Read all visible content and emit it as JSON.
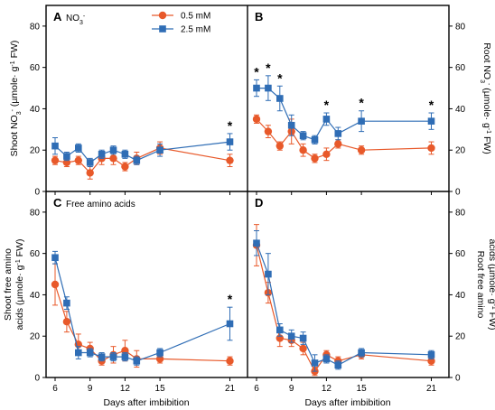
{
  "figure": {
    "x_axis_title": "Days after imbibition",
    "left_top_ylabel": [
      "Shoot NO",
      "3",
      "-",
      " (µmole· g",
      "-1",
      " FW)"
    ],
    "right_top_ylabel": [
      "Root NO",
      "3",
      "-",
      " (µmole· g",
      "-1",
      " FW)"
    ],
    "left_bottom_ylabel_line1": "Shoot free amino",
    "left_bottom_ylabel_line2": [
      "acids (µmole· g",
      "-1",
      " FW)"
    ],
    "right_bottom_ylabel_line1": "Root free amino",
    "right_bottom_ylabel_line2": [
      "acids (µmole· g",
      "-1",
      " FW)"
    ],
    "legend": [
      {
        "label": "0.5 mM",
        "color": "#e8592a",
        "marker": "circle"
      },
      {
        "label": "2.5 mM",
        "color": "#2f6db5",
        "marker": "square"
      }
    ]
  },
  "chart_data": [
    {
      "type": "line",
      "panel": "A",
      "label_parts": [
        "A",
        "NO",
        "3",
        "-"
      ],
      "x_ticks": [
        6,
        9,
        12,
        15,
        21
      ],
      "y_ticks": [
        0,
        20,
        40,
        60,
        80
      ],
      "xlim": [
        5,
        22
      ],
      "ylim": [
        0,
        90
      ],
      "series": [
        {
          "name": "0.5 mM",
          "color": "#e8592a",
          "marker": "circle",
          "x": [
            6,
            7,
            8,
            9,
            10,
            11,
            12,
            13,
            15,
            21
          ],
          "y": [
            15,
            14,
            15,
            9,
            16,
            16,
            12,
            16,
            21,
            15
          ],
          "err": [
            2,
            2,
            2,
            3,
            3,
            3,
            2,
            3,
            3,
            3
          ]
        },
        {
          "name": "2.5 mM",
          "color": "#2f6db5",
          "marker": "square",
          "x": [
            6,
            7,
            8,
            9,
            10,
            11,
            12,
            13,
            15,
            21
          ],
          "y": [
            22,
            17,
            21,
            14,
            18,
            20,
            18,
            15,
            20,
            24
          ],
          "err": [
            4,
            2,
            2,
            2,
            2,
            2,
            2,
            2,
            3,
            4
          ]
        }
      ],
      "annotations": [
        {
          "x": 21,
          "text": "*"
        }
      ]
    },
    {
      "type": "line",
      "panel": "B",
      "label_parts": [
        "B"
      ],
      "x_ticks": [
        6,
        9,
        12,
        15,
        21
      ],
      "y_ticks": [
        0,
        20,
        40,
        60,
        80
      ],
      "xlim": [
        5,
        22
      ],
      "ylim": [
        0,
        90
      ],
      "series": [
        {
          "name": "0.5 mM",
          "color": "#e8592a",
          "marker": "circle",
          "x": [
            6,
            7,
            8,
            9,
            10,
            11,
            12,
            13,
            15,
            21
          ],
          "y": [
            35,
            29,
            22,
            29,
            20,
            16,
            18,
            23,
            20,
            21
          ],
          "err": [
            2,
            3,
            2,
            6,
            3,
            2,
            3,
            2,
            2,
            3
          ]
        },
        {
          "name": "2.5 mM",
          "color": "#2f6db5",
          "marker": "square",
          "x": [
            6,
            7,
            8,
            9,
            10,
            11,
            12,
            13,
            15,
            21
          ],
          "y": [
            50,
            50,
            45,
            32,
            27,
            25,
            35,
            28,
            34,
            34
          ],
          "err": [
            4,
            6,
            6,
            5,
            2,
            2,
            3,
            3,
            5,
            4
          ]
        }
      ],
      "annotations": [
        {
          "x": 6,
          "text": "*"
        },
        {
          "x": 7,
          "text": "*"
        },
        {
          "x": 8,
          "text": "*"
        },
        {
          "x": 12,
          "text": "*"
        },
        {
          "x": 15,
          "text": "*"
        },
        {
          "x": 21,
          "text": "*"
        }
      ]
    },
    {
      "type": "line",
      "panel": "C",
      "label_parts": [
        "C",
        "Free amino acids"
      ],
      "x_ticks": [
        6,
        9,
        12,
        15,
        21
      ],
      "y_ticks": [
        0,
        20,
        40,
        60,
        80
      ],
      "xlim": [
        5,
        22
      ],
      "ylim": [
        0,
        90
      ],
      "series": [
        {
          "name": "0.5 mM",
          "color": "#e8592a",
          "marker": "circle",
          "x": [
            6,
            7,
            8,
            9,
            10,
            11,
            12,
            13,
            15,
            21
          ],
          "y": [
            45,
            27,
            16,
            14,
            8,
            11,
            13,
            9,
            9,
            8
          ],
          "err": [
            10,
            5,
            5,
            3,
            2,
            4,
            5,
            4,
            2,
            2
          ]
        },
        {
          "name": "2.5 mM",
          "color": "#2f6db5",
          "marker": "square",
          "x": [
            6,
            7,
            8,
            9,
            10,
            11,
            12,
            13,
            15,
            21
          ],
          "y": [
            58,
            36,
            12,
            12,
            10,
            10,
            10,
            8,
            12,
            26
          ],
          "err": [
            3,
            3,
            3,
            2,
            2,
            2,
            2,
            2,
            2,
            8
          ]
        }
      ],
      "annotations": [
        {
          "x": 21,
          "text": "*"
        }
      ]
    },
    {
      "type": "line",
      "panel": "D",
      "label_parts": [
        "D"
      ],
      "x_ticks": [
        6,
        9,
        12,
        15,
        21
      ],
      "y_ticks": [
        0,
        20,
        40,
        60,
        80
      ],
      "xlim": [
        5,
        22
      ],
      "ylim": [
        0,
        90
      ],
      "series": [
        {
          "name": "0.5 mM",
          "color": "#e8592a",
          "marker": "circle",
          "x": [
            6,
            7,
            8,
            9,
            10,
            11,
            12,
            13,
            15,
            21
          ],
          "y": [
            64,
            41,
            19,
            18,
            14,
            3,
            11,
            8,
            11,
            8
          ],
          "err": [
            10,
            5,
            4,
            3,
            3,
            2,
            2,
            2,
            2,
            2
          ]
        },
        {
          "name": "2.5 mM",
          "color": "#2f6db5",
          "marker": "square",
          "x": [
            6,
            7,
            8,
            9,
            10,
            11,
            12,
            13,
            15,
            21
          ],
          "y": [
            65,
            50,
            23,
            20,
            19,
            7,
            9,
            6,
            12,
            11
          ],
          "err": [
            6,
            10,
            3,
            3,
            3,
            4,
            2,
            2,
            2,
            2
          ]
        }
      ]
    }
  ]
}
